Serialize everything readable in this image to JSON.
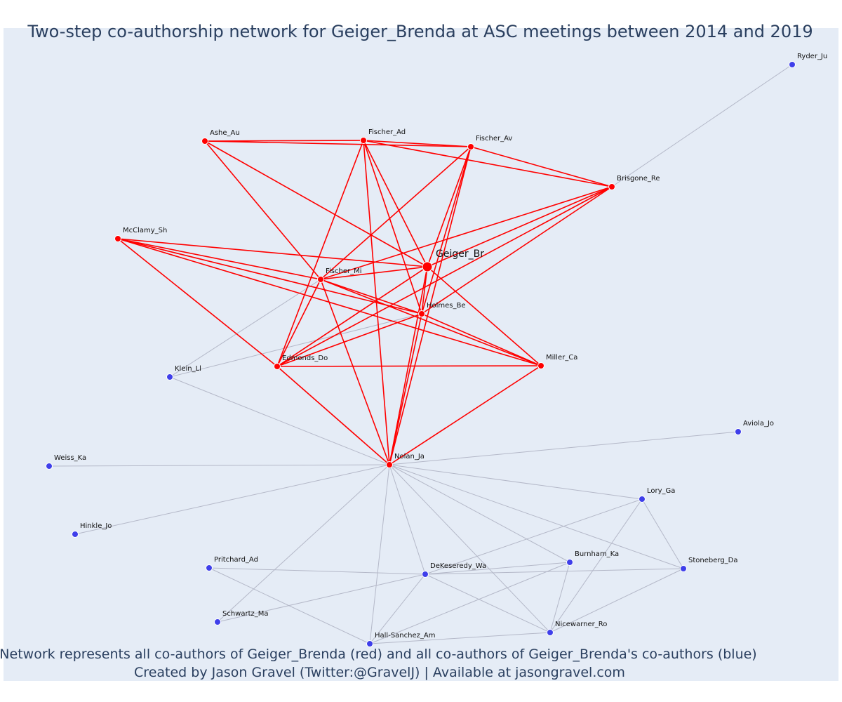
{
  "title": "Two-step co-authorship network for Geiger_Brenda at ASC meetings between 2014 and 2019",
  "caption_line1": "Network represents all co-authors of Geiger_Brenda (red) and all co-authors of Geiger_Brenda's co-authors (blue)",
  "caption_line2": "Created by Jason Gravel (Twitter:@GravelJ) | Available at jasongravel.com",
  "colors": {
    "background": "#e5ecf6",
    "first_degree": "#ff0000",
    "second_degree": "#3f3fea",
    "first_degree_edge": "#ff0000",
    "second_degree_edge": "#b4b8c8",
    "text": "#2a3f5f"
  },
  "nodes": [
    {
      "id": "Geiger_Br",
      "group": "focus"
    },
    {
      "id": "Ashe_Au",
      "group": "red"
    },
    {
      "id": "Fischer_Ad",
      "group": "red"
    },
    {
      "id": "Fischer_Av",
      "group": "red"
    },
    {
      "id": "Brisgone_Re",
      "group": "red"
    },
    {
      "id": "McClamy_Sh",
      "group": "red"
    },
    {
      "id": "Fischer_Mi",
      "group": "red"
    },
    {
      "id": "Holmes_Be",
      "group": "red"
    },
    {
      "id": "Edmonds_Do",
      "group": "red"
    },
    {
      "id": "Miller_Ca",
      "group": "red"
    },
    {
      "id": "Nolan_Ja",
      "group": "red"
    },
    {
      "id": "Ryder_Ju",
      "group": "blue"
    },
    {
      "id": "Klein_Ll",
      "group": "blue"
    },
    {
      "id": "Aviola_Jo",
      "group": "blue"
    },
    {
      "id": "Weiss_Ka",
      "group": "blue"
    },
    {
      "id": "Lory_Ga",
      "group": "blue"
    },
    {
      "id": "Hinkle_Jo",
      "group": "blue"
    },
    {
      "id": "Burnham_Ka",
      "group": "blue"
    },
    {
      "id": "Pritchard_Ad",
      "group": "blue"
    },
    {
      "id": "Stoneberg_Da",
      "group": "blue"
    },
    {
      "id": "DeKeseredy_Wa",
      "group": "blue"
    },
    {
      "id": "Schwartz_Ma",
      "group": "blue"
    },
    {
      "id": "Nicewarner_Ro",
      "group": "blue"
    },
    {
      "id": "Hall-Sanchez_Am",
      "group": "blue"
    }
  ],
  "red_edges": [
    [
      "Ashe_Au",
      "Fischer_Ad"
    ],
    [
      "Ashe_Au",
      "Fischer_Av"
    ],
    [
      "Ashe_Au",
      "Geiger_Br"
    ],
    [
      "Ashe_Au",
      "Fischer_Mi"
    ],
    [
      "Fischer_Ad",
      "Fischer_Av"
    ],
    [
      "Fischer_Ad",
      "Brisgone_Re"
    ],
    [
      "Fischer_Ad",
      "Geiger_Br"
    ],
    [
      "Fischer_Ad",
      "Holmes_Be"
    ],
    [
      "Fischer_Ad",
      "Edmonds_Do"
    ],
    [
      "Fischer_Ad",
      "Nolan_Ja"
    ],
    [
      "Fischer_Av",
      "Brisgone_Re"
    ],
    [
      "Fischer_Av",
      "Fischer_Mi"
    ],
    [
      "Fischer_Av",
      "Geiger_Br"
    ],
    [
      "Fischer_Av",
      "Holmes_Be"
    ],
    [
      "Fischer_Av",
      "Nolan_Ja"
    ],
    [
      "Brisgone_Re",
      "Fischer_Mi"
    ],
    [
      "Brisgone_Re",
      "Geiger_Br"
    ],
    [
      "Brisgone_Re",
      "Holmes_Be"
    ],
    [
      "Brisgone_Re",
      "Edmonds_Do"
    ],
    [
      "McClamy_Sh",
      "Geiger_Br"
    ],
    [
      "McClamy_Sh",
      "Fischer_Mi"
    ],
    [
      "McClamy_Sh",
      "Holmes_Be"
    ],
    [
      "McClamy_Sh",
      "Edmonds_Do"
    ],
    [
      "McClamy_Sh",
      "Miller_Ca"
    ],
    [
      "Geiger_Br",
      "Fischer_Mi"
    ],
    [
      "Geiger_Br",
      "Holmes_Be"
    ],
    [
      "Geiger_Br",
      "Edmonds_Do"
    ],
    [
      "Geiger_Br",
      "Miller_Ca"
    ],
    [
      "Geiger_Br",
      "Nolan_Ja"
    ],
    [
      "Fischer_Mi",
      "Holmes_Be"
    ],
    [
      "Fischer_Mi",
      "Miller_Ca"
    ],
    [
      "Fischer_Mi",
      "Nolan_Ja"
    ],
    [
      "Fischer_Mi",
      "Edmonds_Do"
    ],
    [
      "Holmes_Be",
      "Edmonds_Do"
    ],
    [
      "Holmes_Be",
      "Miller_Ca"
    ],
    [
      "Holmes_Be",
      "Nolan_Ja"
    ],
    [
      "Edmonds_Do",
      "Miller_Ca"
    ],
    [
      "Edmonds_Do",
      "Nolan_Ja"
    ],
    [
      "Miller_Ca",
      "Nolan_Ja"
    ]
  ],
  "blue_edges": [
    [
      "Brisgone_Re",
      "Ryder_Ju"
    ],
    [
      "Klein_Ll",
      "Fischer_Mi"
    ],
    [
      "Klein_Ll",
      "Holmes_Be"
    ],
    [
      "Klein_Ll",
      "Nolan_Ja"
    ],
    [
      "Nolan_Ja",
      "Aviola_Jo"
    ],
    [
      "Nolan_Ja",
      "Weiss_Ka"
    ],
    [
      "Nolan_Ja",
      "Hinkle_Jo"
    ],
    [
      "Nolan_Ja",
      "Lory_Ga"
    ],
    [
      "Nolan_Ja",
      "Stoneberg_Da"
    ],
    [
      "Nolan_Ja",
      "Burnham_Ka"
    ],
    [
      "Nolan_Ja",
      "DeKeseredy_Wa"
    ],
    [
      "Nolan_Ja",
      "Nicewarner_Ro"
    ],
    [
      "Nolan_Ja",
      "Hall-Sanchez_Am"
    ],
    [
      "Nolan_Ja",
      "Schwartz_Ma"
    ],
    [
      "Lory_Ga",
      "DeKeseredy_Wa"
    ],
    [
      "Lory_Ga",
      "Stoneberg_Da"
    ],
    [
      "Lory_Ga",
      "Nicewarner_Ro"
    ],
    [
      "Pritchard_Ad",
      "DeKeseredy_Wa"
    ],
    [
      "Pritchard_Ad",
      "Hall-Sanchez_Am"
    ],
    [
      "DeKeseredy_Wa",
      "Burnham_Ka"
    ],
    [
      "DeKeseredy_Wa",
      "Stoneberg_Da"
    ],
    [
      "DeKeseredy_Wa",
      "Nicewarner_Ro"
    ],
    [
      "DeKeseredy_Wa",
      "Hall-Sanchez_Am"
    ],
    [
      "DeKeseredy_Wa",
      "Schwartz_Ma"
    ],
    [
      "Burnham_Ka",
      "Nicewarner_Ro"
    ],
    [
      "Burnham_Ka",
      "Hall-Sanchez_Am"
    ],
    [
      "Stoneberg_Da",
      "Nicewarner_Ro"
    ],
    [
      "Nicewarner_Ro",
      "Hall-Sanchez_Am"
    ]
  ]
}
